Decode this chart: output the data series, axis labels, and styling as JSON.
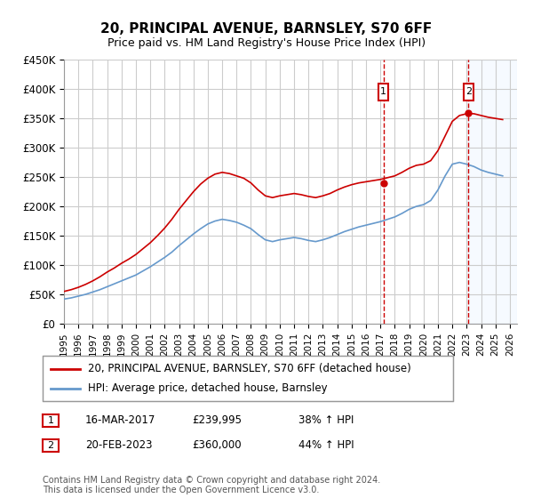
{
  "title": "20, PRINCIPAL AVENUE, BARNSLEY, S70 6FF",
  "subtitle": "Price paid vs. HM Land Registry's House Price Index (HPI)",
  "ylabel": "",
  "xlabel": "",
  "ylim": [
    0,
    450000
  ],
  "xlim_start": 1995.0,
  "xlim_end": 2026.5,
  "yticks": [
    0,
    50000,
    100000,
    150000,
    200000,
    250000,
    300000,
    350000,
    400000,
    450000
  ],
  "ytick_labels": [
    "£0",
    "£50K",
    "£100K",
    "£150K",
    "£200K",
    "£250K",
    "£300K",
    "£350K",
    "£400K",
    "£450K"
  ],
  "xticks": [
    1995,
    1996,
    1997,
    1998,
    1999,
    2000,
    2001,
    2002,
    2003,
    2004,
    2005,
    2006,
    2007,
    2008,
    2009,
    2010,
    2011,
    2012,
    2013,
    2014,
    2015,
    2016,
    2017,
    2018,
    2019,
    2020,
    2021,
    2022,
    2023,
    2024,
    2025,
    2026
  ],
  "sale1_x": 2017.21,
  "sale1_y": 239995,
  "sale1_label": "1",
  "sale1_date": "16-MAR-2017",
  "sale1_price": "£239,995",
  "sale1_hpi": "38% ↑ HPI",
  "sale2_x": 2023.13,
  "sale2_y": 360000,
  "sale2_label": "2",
  "sale2_date": "20-FEB-2023",
  "sale2_price": "£360,000",
  "sale2_hpi": "44% ↑ HPI",
  "red_line_color": "#cc0000",
  "blue_line_color": "#6699cc",
  "grid_color": "#cccccc",
  "background_color": "#ffffff",
  "shade_color": "#ddeeff",
  "legend_label_red": "20, PRINCIPAL AVENUE, BARNSLEY, S70 6FF (detached house)",
  "legend_label_blue": "HPI: Average price, detached house, Barnsley",
  "footer": "Contains HM Land Registry data © Crown copyright and database right 2024.\nThis data is licensed under the Open Government Licence v3.0.",
  "red_x": [
    1995.0,
    1995.5,
    1996.0,
    1996.5,
    1997.0,
    1997.5,
    1998.0,
    1998.5,
    1999.0,
    1999.5,
    2000.0,
    2000.5,
    2001.0,
    2001.5,
    2002.0,
    2002.5,
    2003.0,
    2003.5,
    2004.0,
    2004.5,
    2005.0,
    2005.5,
    2006.0,
    2006.5,
    2007.0,
    2007.5,
    2008.0,
    2008.5,
    2009.0,
    2009.5,
    2010.0,
    2010.5,
    2011.0,
    2011.5,
    2012.0,
    2012.5,
    2013.0,
    2013.5,
    2014.0,
    2014.5,
    2015.0,
    2015.5,
    2016.0,
    2016.5,
    2017.0,
    2017.5,
    2018.0,
    2018.5,
    2019.0,
    2019.5,
    2020.0,
    2020.5,
    2021.0,
    2021.5,
    2022.0,
    2022.5,
    2023.0,
    2023.5,
    2024.0,
    2024.5,
    2025.0,
    2025.5
  ],
  "red_y": [
    55000,
    58000,
    62000,
    67000,
    73000,
    80000,
    88000,
    95000,
    103000,
    110000,
    118000,
    128000,
    138000,
    150000,
    163000,
    178000,
    195000,
    210000,
    225000,
    238000,
    248000,
    255000,
    258000,
    256000,
    252000,
    248000,
    240000,
    228000,
    218000,
    215000,
    218000,
    220000,
    222000,
    220000,
    217000,
    215000,
    218000,
    222000,
    228000,
    233000,
    237000,
    240000,
    242000,
    244000,
    246000,
    249000,
    252000,
    258000,
    265000,
    270000,
    272000,
    278000,
    295000,
    320000,
    345000,
    355000,
    358000,
    358000,
    355000,
    352000,
    350000,
    348000
  ],
  "blue_x": [
    1995.0,
    1995.5,
    1996.0,
    1996.5,
    1997.0,
    1997.5,
    1998.0,
    1998.5,
    1999.0,
    1999.5,
    2000.0,
    2000.5,
    2001.0,
    2001.5,
    2002.0,
    2002.5,
    2003.0,
    2003.5,
    2004.0,
    2004.5,
    2005.0,
    2005.5,
    2006.0,
    2006.5,
    2007.0,
    2007.5,
    2008.0,
    2008.5,
    2009.0,
    2009.5,
    2010.0,
    2010.5,
    2011.0,
    2011.5,
    2012.0,
    2012.5,
    2013.0,
    2013.5,
    2014.0,
    2014.5,
    2015.0,
    2015.5,
    2016.0,
    2016.5,
    2017.0,
    2017.5,
    2018.0,
    2018.5,
    2019.0,
    2019.5,
    2020.0,
    2020.5,
    2021.0,
    2021.5,
    2022.0,
    2022.5,
    2023.0,
    2023.5,
    2024.0,
    2024.5,
    2025.0,
    2025.5
  ],
  "blue_y": [
    42000,
    44000,
    47000,
    50000,
    54000,
    58000,
    63000,
    68000,
    73000,
    78000,
    83000,
    90000,
    97000,
    105000,
    113000,
    122000,
    133000,
    143000,
    153000,
    162000,
    170000,
    175000,
    178000,
    176000,
    173000,
    168000,
    162000,
    152000,
    143000,
    140000,
    143000,
    145000,
    147000,
    145000,
    142000,
    140000,
    143000,
    147000,
    152000,
    157000,
    161000,
    165000,
    168000,
    171000,
    174000,
    178000,
    182000,
    188000,
    195000,
    200000,
    203000,
    210000,
    228000,
    252000,
    272000,
    275000,
    272000,
    268000,
    262000,
    258000,
    255000,
    252000
  ]
}
